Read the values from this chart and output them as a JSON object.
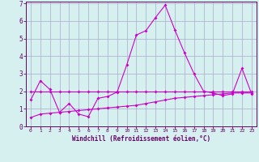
{
  "xlabel": "Windchill (Refroidissement éolien,°C)",
  "x_values": [
    0,
    1,
    2,
    3,
    4,
    5,
    6,
    7,
    8,
    9,
    10,
    11,
    12,
    13,
    14,
    15,
    16,
    17,
    18,
    19,
    20,
    21,
    22,
    23
  ],
  "line1_y": [
    1.5,
    2.6,
    2.1,
    0.8,
    1.3,
    0.7,
    0.55,
    1.6,
    1.7,
    1.95,
    3.5,
    5.2,
    5.45,
    6.2,
    6.9,
    5.5,
    4.2,
    3.0,
    2.0,
    1.9,
    1.75,
    1.85,
    3.3,
    1.85
  ],
  "line2_y": [
    2.0,
    2.0,
    2.0,
    2.0,
    2.0,
    2.0,
    2.0,
    2.0,
    2.0,
    2.0,
    2.0,
    2.0,
    2.0,
    2.0,
    2.0,
    2.0,
    2.0,
    2.0,
    2.0,
    2.0,
    2.0,
    2.0,
    2.0,
    2.0
  ],
  "line3_y": [
    0.5,
    0.7,
    0.75,
    0.8,
    0.85,
    0.9,
    0.95,
    1.0,
    1.05,
    1.1,
    1.15,
    1.2,
    1.3,
    1.4,
    1.5,
    1.6,
    1.65,
    1.7,
    1.75,
    1.8,
    1.85,
    1.9,
    1.9,
    1.9
  ],
  "line_color": "#cc00cc",
  "bg_color": "#d6f0f0",
  "grid_color": "#aaaacc",
  "axis_color": "#660066",
  "ylim": [
    0,
    7
  ],
  "xlim": [
    -0.5,
    23.5
  ]
}
